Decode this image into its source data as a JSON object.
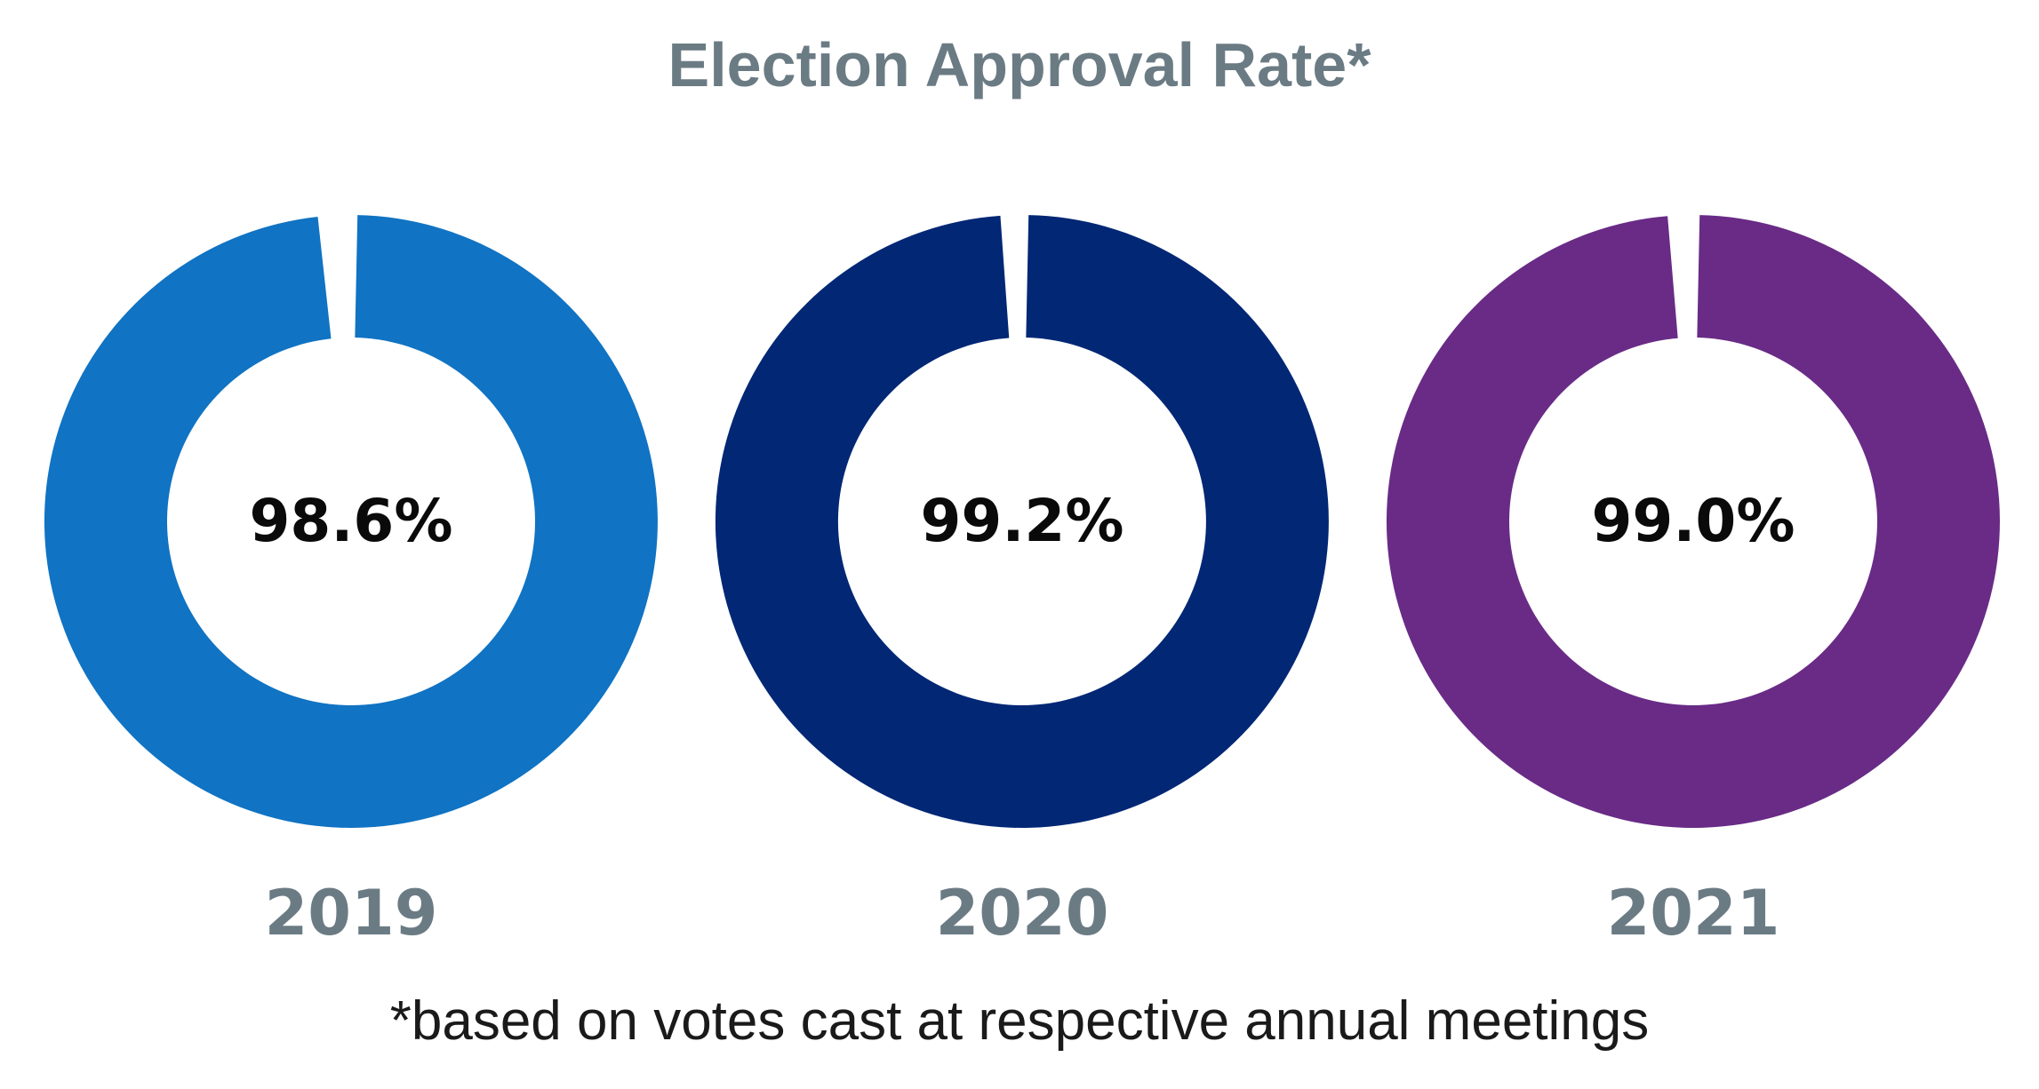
{
  "chart_data": {
    "type": "pie",
    "title": "Election Approval Rate*",
    "footnote": "*based on votes cast at respective annual meetings",
    "series": [
      {
        "name": "2019",
        "value": 98.6,
        "label": "98.6%",
        "color": "#1073C3"
      },
      {
        "name": "2020",
        "value": 99.2,
        "label": "99.2%",
        "color": "#012775"
      },
      {
        "name": "2021",
        "value": 99.0,
        "label": "99.0%",
        "color": "#692B86"
      }
    ],
    "total": 100,
    "text_colors": {
      "title": "#6B7B84",
      "year": "#6B7B84",
      "value": "#0A0A0A",
      "footnote": "#1A1A1A"
    }
  }
}
